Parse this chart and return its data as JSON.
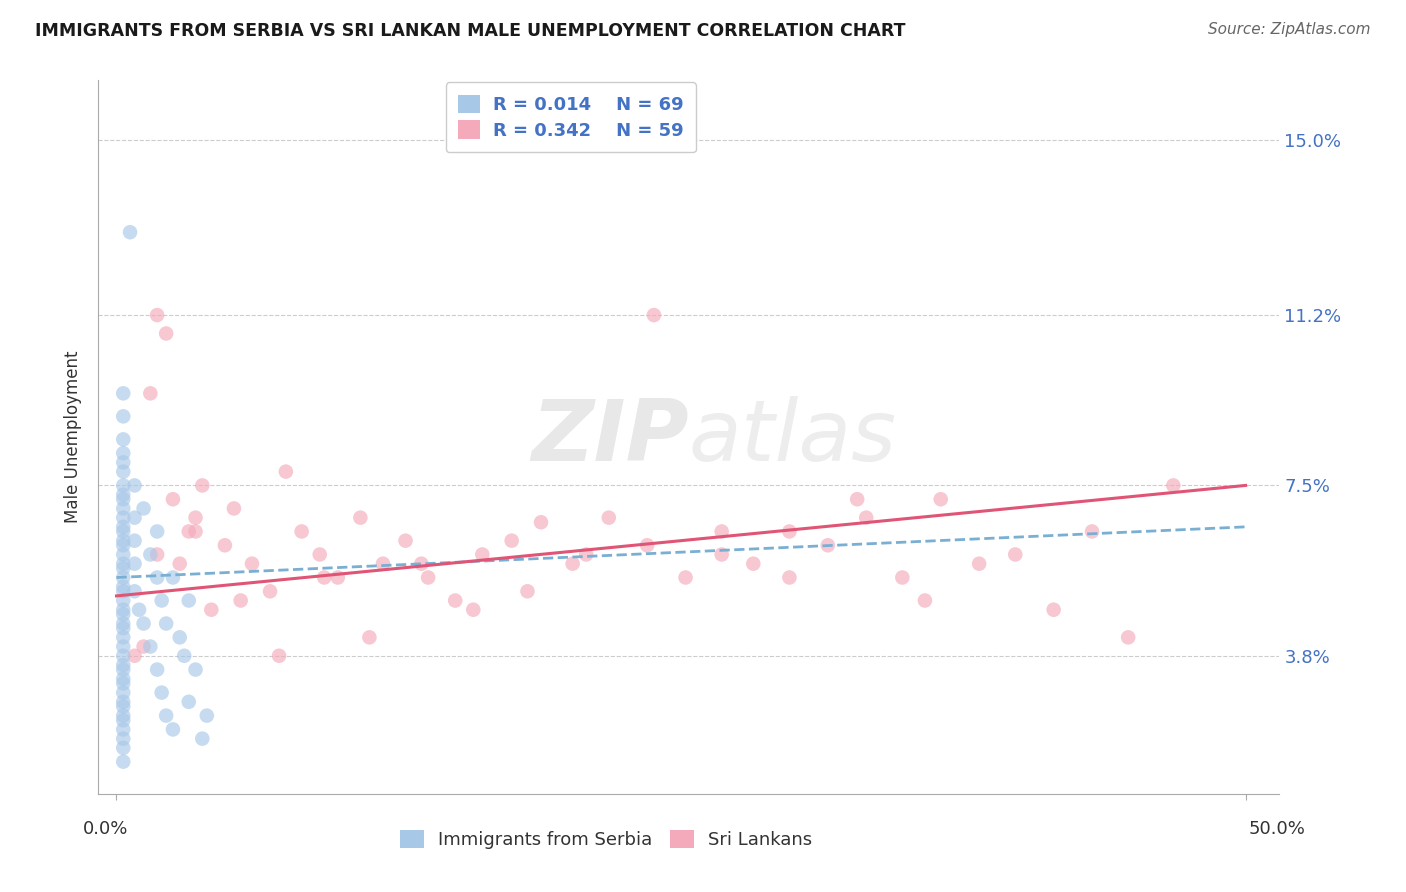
{
  "title": "IMMIGRANTS FROM SERBIA VS SRI LANKAN MALE UNEMPLOYMENT CORRELATION CHART",
  "source": "Source: ZipAtlas.com",
  "ylabel": "Male Unemployment",
  "ytick_vals": [
    0.038,
    0.075,
    0.112,
    0.15
  ],
  "ytick_labels": [
    "3.8%",
    "7.5%",
    "11.2%",
    "15.0%"
  ],
  "xtick_vals": [
    0.0,
    0.5
  ],
  "xtick_labels": [
    "0.0%",
    "50.0%"
  ],
  "xlim": [
    -0.008,
    0.515
  ],
  "ylim": [
    0.008,
    0.163
  ],
  "legend_r1": "R = 0.014",
  "legend_n1": "N = 69",
  "legend_r2": "R = 0.342",
  "legend_n2": "N = 59",
  "color_blue": "#A8C8E8",
  "color_pink": "#F4AABB",
  "line_blue": "#7AAFD4",
  "line_pink": "#E05575",
  "watermark": "ZIPatlas",
  "serbia_x": [
    0.006,
    0.003,
    0.003,
    0.003,
    0.003,
    0.003,
    0.003,
    0.003,
    0.003,
    0.003,
    0.003,
    0.003,
    0.003,
    0.003,
    0.003,
    0.003,
    0.003,
    0.003,
    0.003,
    0.003,
    0.003,
    0.003,
    0.003,
    0.003,
    0.003,
    0.003,
    0.003,
    0.003,
    0.003,
    0.003,
    0.003,
    0.003,
    0.003,
    0.003,
    0.003,
    0.003,
    0.003,
    0.003,
    0.003,
    0.003,
    0.003,
    0.003,
    0.003,
    0.008,
    0.008,
    0.008,
    0.008,
    0.008,
    0.01,
    0.012,
    0.012,
    0.015,
    0.015,
    0.018,
    0.018,
    0.018,
    0.02,
    0.02,
    0.022,
    0.022,
    0.025,
    0.025,
    0.028,
    0.03,
    0.032,
    0.032,
    0.035,
    0.038,
    0.04
  ],
  "serbia_y": [
    0.13,
    0.095,
    0.09,
    0.085,
    0.082,
    0.08,
    0.078,
    0.075,
    0.073,
    0.072,
    0.07,
    0.068,
    0.066,
    0.065,
    0.063,
    0.062,
    0.06,
    0.058,
    0.057,
    0.055,
    0.053,
    0.052,
    0.05,
    0.048,
    0.047,
    0.045,
    0.044,
    0.042,
    0.04,
    0.038,
    0.036,
    0.035,
    0.033,
    0.032,
    0.03,
    0.028,
    0.027,
    0.025,
    0.024,
    0.022,
    0.02,
    0.018,
    0.015,
    0.075,
    0.068,
    0.063,
    0.058,
    0.052,
    0.048,
    0.07,
    0.045,
    0.06,
    0.04,
    0.065,
    0.055,
    0.035,
    0.05,
    0.03,
    0.045,
    0.025,
    0.055,
    0.022,
    0.042,
    0.038,
    0.05,
    0.028,
    0.035,
    0.02,
    0.025
  ],
  "srilanka_x": [
    0.008,
    0.012,
    0.015,
    0.018,
    0.022,
    0.025,
    0.028,
    0.032,
    0.035,
    0.038,
    0.042,
    0.048,
    0.052,
    0.06,
    0.068,
    0.075,
    0.082,
    0.09,
    0.098,
    0.108,
    0.118,
    0.128,
    0.138,
    0.15,
    0.162,
    0.175,
    0.188,
    0.202,
    0.218,
    0.235,
    0.252,
    0.268,
    0.282,
    0.298,
    0.315,
    0.332,
    0.348,
    0.365,
    0.382,
    0.398,
    0.415,
    0.432,
    0.448,
    0.018,
    0.035,
    0.055,
    0.072,
    0.092,
    0.112,
    0.135,
    0.158,
    0.182,
    0.208,
    0.238,
    0.268,
    0.298,
    0.328,
    0.358,
    0.468
  ],
  "srilanka_y": [
    0.038,
    0.04,
    0.095,
    0.06,
    0.108,
    0.072,
    0.058,
    0.065,
    0.068,
    0.075,
    0.048,
    0.062,
    0.07,
    0.058,
    0.052,
    0.078,
    0.065,
    0.06,
    0.055,
    0.068,
    0.058,
    0.063,
    0.055,
    0.05,
    0.06,
    0.063,
    0.067,
    0.058,
    0.068,
    0.062,
    0.055,
    0.06,
    0.058,
    0.065,
    0.062,
    0.068,
    0.055,
    0.072,
    0.058,
    0.06,
    0.048,
    0.065,
    0.042,
    0.112,
    0.065,
    0.05,
    0.038,
    0.055,
    0.042,
    0.058,
    0.048,
    0.052,
    0.06,
    0.112,
    0.065,
    0.055,
    0.072,
    0.05,
    0.075
  ],
  "trend_blue_x0": 0.0,
  "trend_blue_x1": 0.5,
  "trend_blue_y0": 0.055,
  "trend_blue_y1": 0.066,
  "trend_pink_x0": 0.0,
  "trend_pink_x1": 0.5,
  "trend_pink_y0": 0.051,
  "trend_pink_y1": 0.075
}
